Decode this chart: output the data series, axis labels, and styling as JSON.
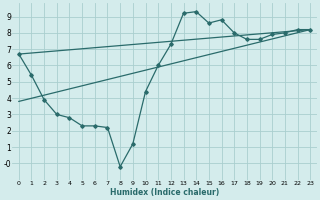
{
  "xlabel": "Humidex (Indice chaleur)",
  "bg_color": "#d4ecec",
  "grid_color": "#aacfcf",
  "line_color": "#2a6b6b",
  "curve1_x": [
    0,
    1,
    2,
    3,
    4,
    5,
    6,
    7,
    8,
    9,
    10,
    11,
    12,
    13,
    14,
    15,
    16,
    17,
    18,
    19,
    20,
    21,
    22,
    23
  ],
  "curve1_y": [
    6.7,
    5.4,
    3.9,
    3.0,
    2.8,
    2.3,
    2.3,
    2.2,
    -0.2,
    1.2,
    4.4,
    6.0,
    7.3,
    9.2,
    9.3,
    8.6,
    8.8,
    8.0,
    7.6,
    7.6,
    7.9,
    8.0,
    8.2,
    8.2
  ],
  "curve2_x": [
    0,
    23
  ],
  "curve2_y": [
    6.7,
    8.2
  ],
  "curve3_x": [
    0,
    23
  ],
  "curve3_y": [
    3.8,
    8.2
  ],
  "xlim": [
    -0.5,
    23.5
  ],
  "ylim": [
    -1.0,
    9.8
  ],
  "xticks": [
    0,
    1,
    2,
    3,
    4,
    5,
    6,
    7,
    8,
    9,
    10,
    11,
    12,
    13,
    14,
    15,
    16,
    17,
    18,
    19,
    20,
    21,
    22,
    23
  ],
  "yticks": [
    0,
    1,
    2,
    3,
    4,
    5,
    6,
    7,
    8,
    9
  ],
  "ytick_labels": [
    "-0",
    "1",
    "2",
    "3",
    "4",
    "5",
    "6",
    "7",
    "8",
    "9"
  ]
}
